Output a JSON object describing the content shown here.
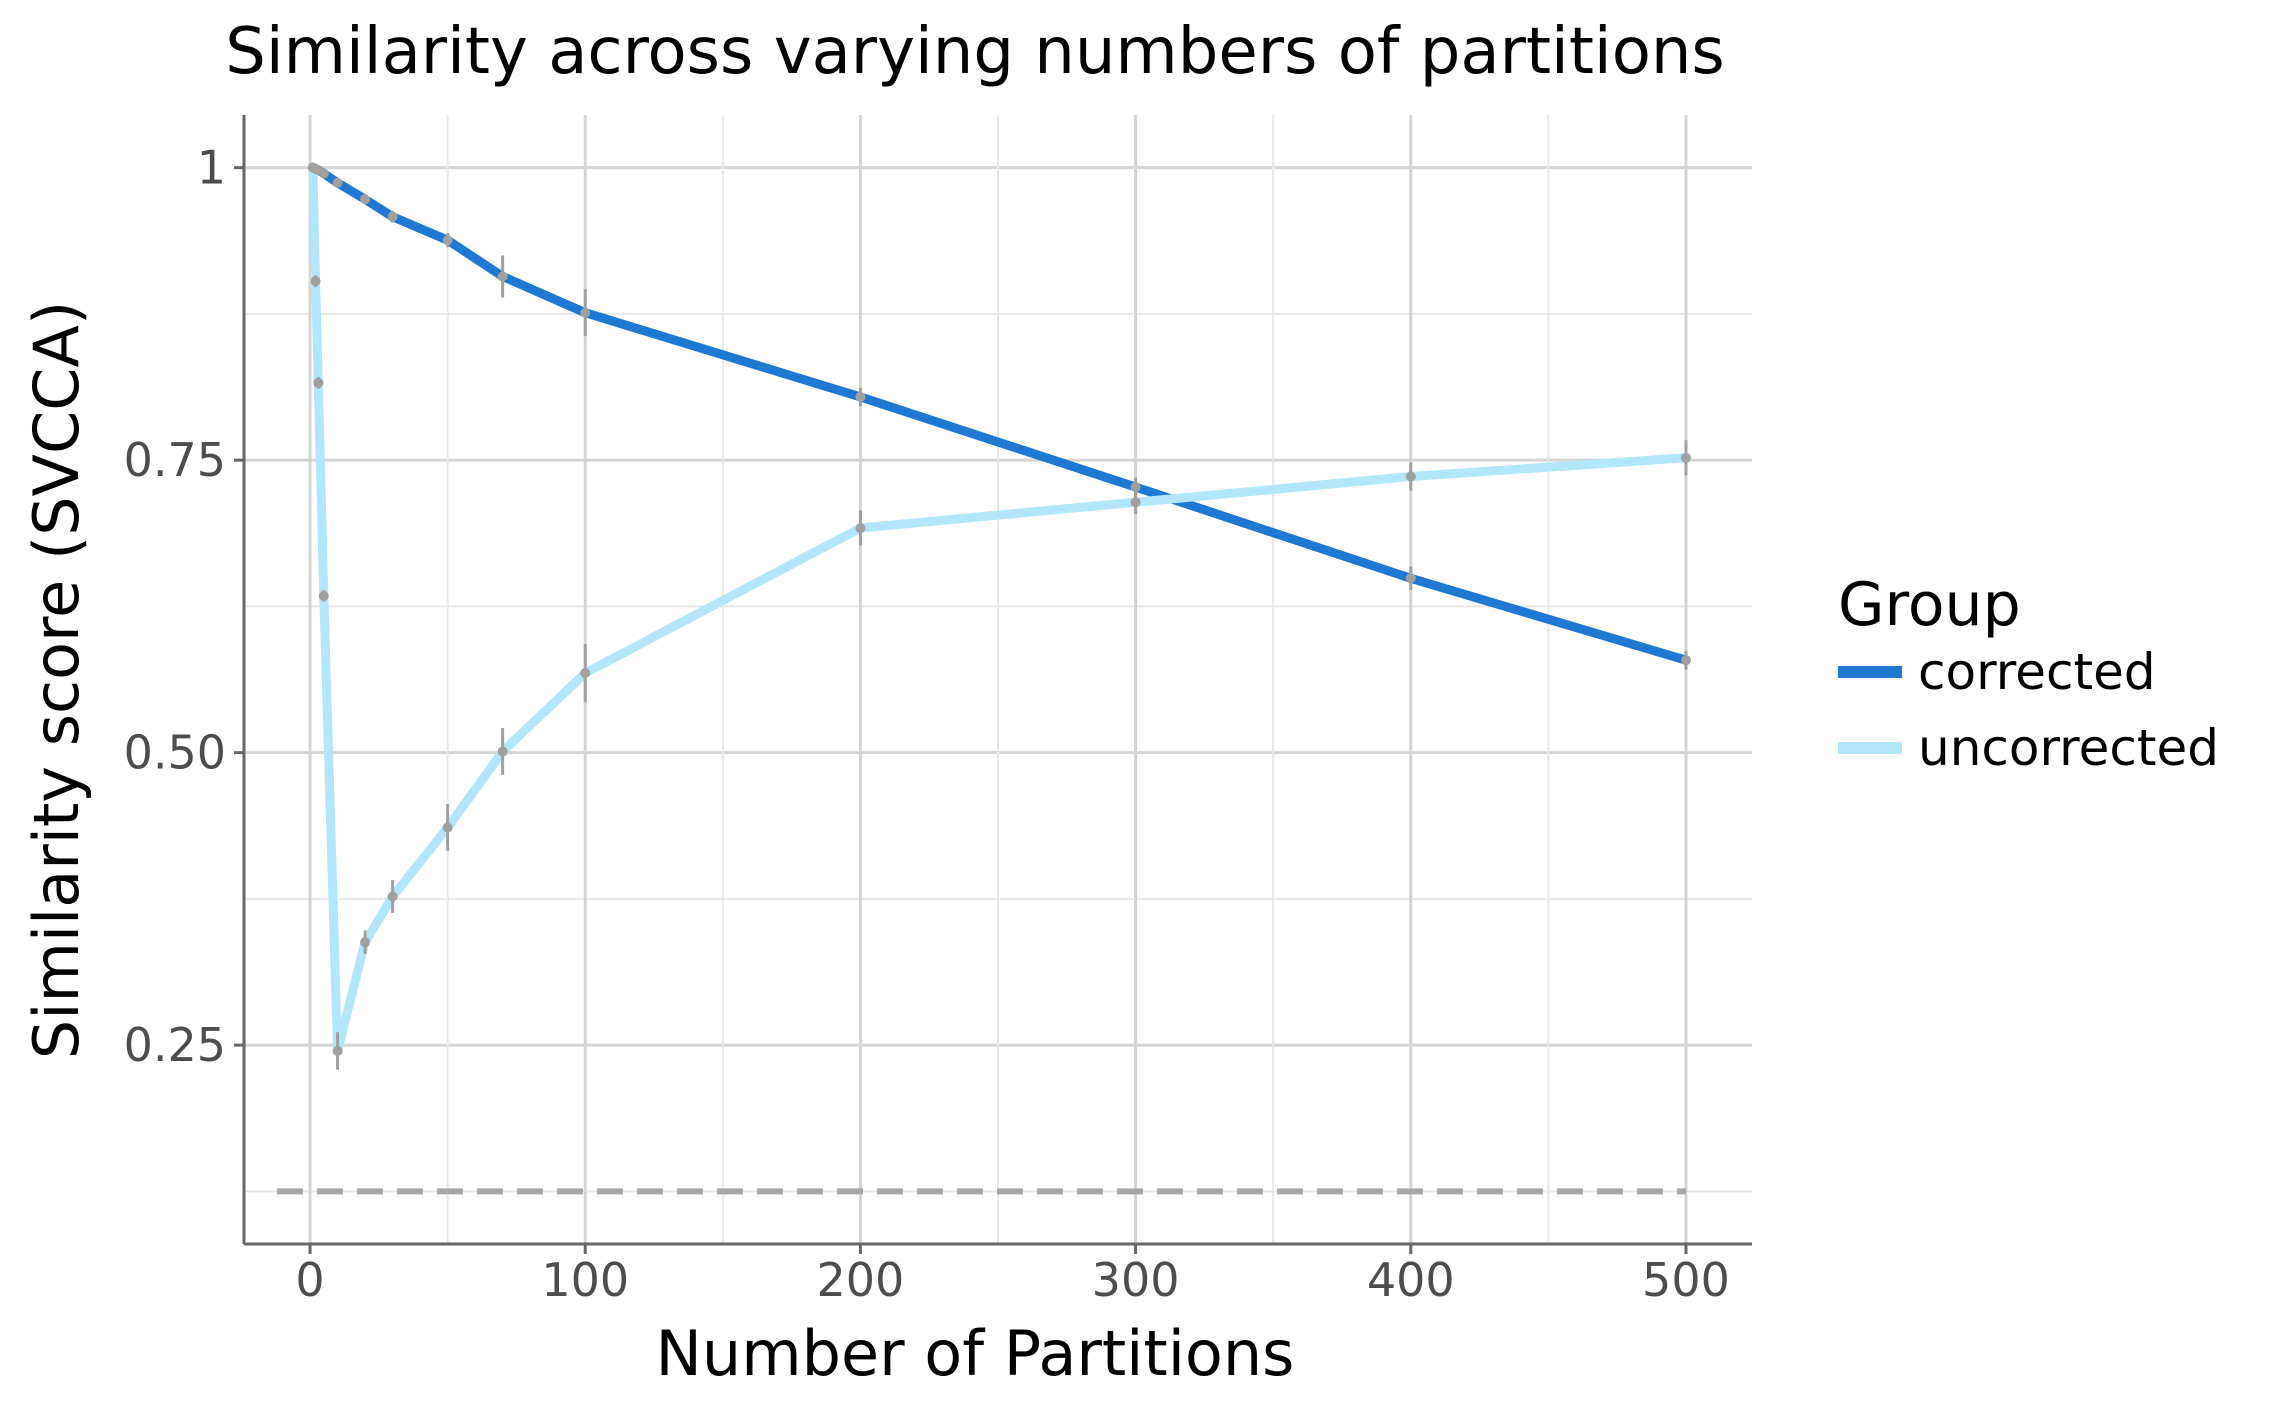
{
  "chart_data": {
    "type": "line",
    "title": "Similarity across varying numbers of partitions",
    "xlabel": "Number of Partitions",
    "ylabel": "Similarity score (SVCCA)",
    "xlim": [
      -24,
      524
    ],
    "ylim": [
      0.08,
      1.045
    ],
    "xticks": [
      0,
      100,
      200,
      300,
      400,
      500
    ],
    "xtick_labels": [
      "0",
      "100",
      "200",
      "300",
      "400",
      "500"
    ],
    "yticks": [
      0.25,
      0.5,
      0.75,
      1.0
    ],
    "ytick_labels": [
      "0.25",
      "0.50",
      "0.75",
      "1"
    ],
    "grid": true,
    "legend": {
      "title": "Group",
      "position": "right"
    },
    "reference_line": {
      "y": 0.125,
      "x_range": [
        -12,
        500
      ],
      "style": "dashed",
      "color": "#a6a6a6"
    },
    "series": [
      {
        "name": "corrected",
        "color": "#1f78d1",
        "points": [
          {
            "x": 1,
            "y": 1.0,
            "err": 0.002
          },
          {
            "x": 2,
            "y": 0.999,
            "err": 0.002
          },
          {
            "x": 3,
            "y": 0.998,
            "err": 0.002
          },
          {
            "x": 5,
            "y": 0.995,
            "err": 0.003
          },
          {
            "x": 10,
            "y": 0.987,
            "err": 0.003
          },
          {
            "x": 20,
            "y": 0.973,
            "err": 0.004
          },
          {
            "x": 30,
            "y": 0.958,
            "err": 0.005
          },
          {
            "x": 50,
            "y": 0.938,
            "err": 0.006
          },
          {
            "x": 70,
            "y": 0.907,
            "err": 0.018
          },
          {
            "x": 100,
            "y": 0.876,
            "err": 0.02
          },
          {
            "x": 200,
            "y": 0.804,
            "err": 0.008
          },
          {
            "x": 300,
            "y": 0.727,
            "err": 0.008
          },
          {
            "x": 400,
            "y": 0.649,
            "err": 0.01
          },
          {
            "x": 500,
            "y": 0.579,
            "err": 0.008
          }
        ]
      },
      {
        "name": "uncorrected",
        "color": "#b3e5fc",
        "points": [
          {
            "x": 1,
            "y": 1.0,
            "err": 0.002
          },
          {
            "x": 2,
            "y": 0.903,
            "err": 0.005
          },
          {
            "x": 3,
            "y": 0.816,
            "err": 0.005
          },
          {
            "x": 5,
            "y": 0.634,
            "err": 0.005
          },
          {
            "x": 10,
            "y": 0.245,
            "err": 0.016
          },
          {
            "x": 20,
            "y": 0.338,
            "err": 0.01
          },
          {
            "x": 30,
            "y": 0.377,
            "err": 0.014
          },
          {
            "x": 50,
            "y": 0.436,
            "err": 0.02
          },
          {
            "x": 70,
            "y": 0.501,
            "err": 0.02
          },
          {
            "x": 100,
            "y": 0.568,
            "err": 0.025
          },
          {
            "x": 200,
            "y": 0.692,
            "err": 0.015
          },
          {
            "x": 300,
            "y": 0.714,
            "err": 0.01
          },
          {
            "x": 400,
            "y": 0.736,
            "err": 0.012
          },
          {
            "x": 500,
            "y": 0.752,
            "err": 0.015
          }
        ]
      }
    ]
  }
}
